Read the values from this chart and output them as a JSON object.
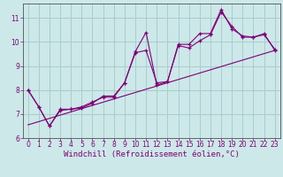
{
  "xlabel": "Windchill (Refroidissement éolien,°C)",
  "background_color": "#cce8e8",
  "grid_color": "#aacccc",
  "line_color": "#800078",
  "xlim": [
    -0.5,
    23.5
  ],
  "ylim": [
    6.0,
    11.6
  ],
  "xticks": [
    0,
    1,
    2,
    3,
    4,
    5,
    6,
    7,
    8,
    9,
    10,
    11,
    12,
    13,
    14,
    15,
    16,
    17,
    18,
    19,
    20,
    21,
    22,
    23
  ],
  "yticks": [
    6,
    7,
    8,
    9,
    10,
    11
  ],
  "series1_x": [
    0,
    1,
    2,
    3,
    4,
    5,
    6,
    7,
    8,
    9,
    10,
    11,
    12,
    13,
    14,
    15,
    16,
    17,
    18,
    19,
    20,
    21,
    22,
    23
  ],
  "series1_y": [
    8.0,
    7.3,
    6.5,
    7.2,
    7.2,
    7.3,
    7.5,
    7.7,
    7.7,
    8.3,
    9.6,
    10.4,
    8.2,
    8.35,
    9.9,
    9.9,
    10.35,
    10.35,
    11.35,
    10.55,
    10.25,
    10.2,
    10.35,
    9.65
  ],
  "series2_x": [
    0,
    1,
    2,
    3,
    4,
    5,
    6,
    7,
    8,
    9,
    10,
    11,
    12,
    13,
    14,
    15,
    16,
    17,
    18,
    19,
    20,
    21,
    22,
    23
  ],
  "series2_y": [
    8.0,
    7.3,
    6.5,
    7.15,
    7.2,
    7.25,
    7.45,
    7.75,
    7.75,
    8.3,
    9.55,
    9.65,
    8.3,
    8.35,
    9.85,
    9.75,
    10.05,
    10.3,
    11.25,
    10.65,
    10.2,
    10.2,
    10.3,
    9.7
  ],
  "trend_x": [
    0,
    23
  ],
  "trend_y": [
    6.55,
    9.65
  ],
  "fontsize_label": 6.5,
  "fontsize_tick": 5.5
}
